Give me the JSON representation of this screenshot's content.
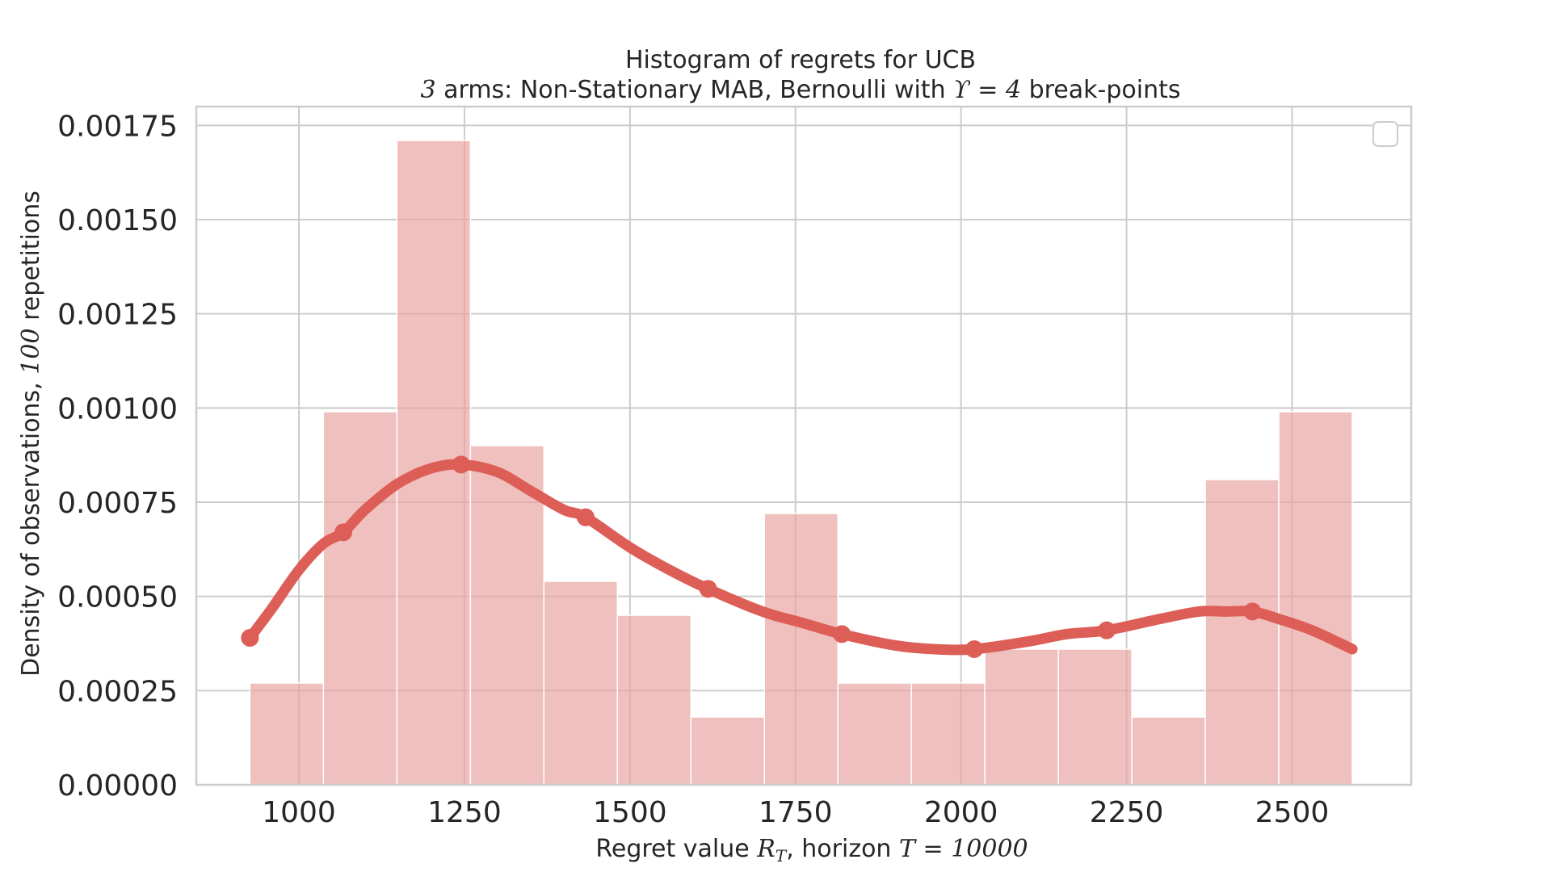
{
  "chart_data": {
    "type": "bar",
    "title": "Histogram of regrets for UCB",
    "subtitle": {
      "pre": "3",
      "mid": " arms: Non-Stationary MAB, Bernoulli with ",
      "sym": "ϒ = 4",
      "post": " break-points"
    },
    "xlabel": {
      "pre": "Regret value ",
      "sym": "R",
      "sub": "T",
      "mid": ", horizon ",
      "sym2": "T = 10000"
    },
    "ylabel": {
      "pre": "Density of observations, ",
      "sym": "100",
      "post": " repetitions"
    },
    "xlim": [
      845,
      2680
    ],
    "ylim": [
      0,
      0.0018
    ],
    "x_ticks": [
      "1000",
      "1250",
      "1500",
      "1750",
      "2000",
      "2250",
      "2500"
    ],
    "x_tick_values": [
      1000,
      1250,
      1500,
      1750,
      2000,
      2250,
      2500
    ],
    "y_ticks": [
      "0.00000",
      "0.00025",
      "0.00050",
      "0.00075",
      "0.00100",
      "0.00125",
      "0.00150",
      "0.00175"
    ],
    "y_tick_values": [
      0,
      0.00025,
      0.0005,
      0.00075,
      0.001,
      0.00125,
      0.0015,
      0.00175
    ],
    "bins": {
      "edges": [
        926,
        1037,
        1148,
        1259,
        1370,
        1481,
        1592,
        1703,
        1814,
        1925,
        2036,
        2147,
        2258,
        2369,
        2480,
        2591
      ],
      "density": [
        0.00027,
        0.00099,
        0.00171,
        0.0009,
        0.00054,
        0.00045,
        0.00018,
        0.00072,
        0.00027,
        0.00027,
        0.00036,
        0.00036,
        0.00018,
        0.00081,
        0.00099
      ]
    },
    "kde": {
      "x": [
        926,
        960,
        1000,
        1037,
        1067,
        1100,
        1150,
        1200,
        1245,
        1300,
        1350,
        1400,
        1433,
        1500,
        1560,
        1618,
        1700,
        1760,
        1820,
        1900,
        1960,
        2020,
        2100,
        2160,
        2220,
        2300,
        2360,
        2400,
        2440,
        2480,
        2530,
        2591
      ],
      "y": [
        0.00039,
        0.00047,
        0.00057,
        0.00064,
        0.00067,
        0.00073,
        0.0008,
        0.00084,
        0.00085,
        0.00083,
        0.00078,
        0.00073,
        0.00071,
        0.00063,
        0.00057,
        0.00052,
        0.00046,
        0.00043,
        0.0004,
        0.00037,
        0.00036,
        0.00036,
        0.00038,
        0.0004,
        0.00041,
        0.00044,
        0.00046,
        0.00046,
        0.00046,
        0.00044,
        0.00041,
        0.00036
      ],
      "marker_x": [
        926,
        1067,
        1245,
        1433,
        1618,
        1820,
        2020,
        2220,
        2440
      ]
    },
    "colors": {
      "bar": "#e8a29d",
      "line": "#dd5e56",
      "grid": "#cccccc",
      "spine": "#cccccc"
    },
    "legend": "top-right",
    "grid": true
  }
}
